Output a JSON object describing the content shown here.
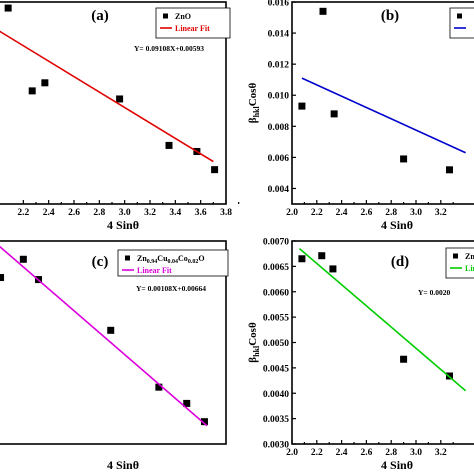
{
  "chart_data": [
    {
      "panel": "(a)",
      "type": "scatter",
      "xlabel": "4 Sinθ",
      "ylabel": "",
      "xlim": [
        2.0,
        3.8
      ],
      "ylim": [
        0.0,
        1.0
      ],
      "xticks": [
        "2.2",
        "2.4",
        "2.6",
        "2.8",
        "3.0",
        "3.2",
        "3.4",
        "3.6",
        "3.8"
      ],
      "yticks": [],
      "series": [
        {
          "name": "ZnO",
          "type": "scatter",
          "color": "#000000",
          "x": [
            2.08,
            2.27,
            2.37,
            2.96,
            3.35,
            3.57,
            3.71
          ],
          "y": [
            0.97,
            0.56,
            0.6,
            0.52,
            0.29,
            0.26,
            0.17
          ]
        },
        {
          "name": "Linear Fit",
          "type": "line",
          "color": "#e00000",
          "x": [
            2.0,
            3.7
          ],
          "y": [
            0.86,
            0.21
          ]
        }
      ],
      "equation": "Y= 0.09108X+0.00593",
      "legend_position": "top-right"
    },
    {
      "panel": "(b)",
      "type": "scatter",
      "xlabel": "4 Sinθ",
      "ylabel": "β_hkl Cosθ",
      "ylabel_main": "β",
      "ylabel_sub": "hkl",
      "ylabel_rest": "Cosθ",
      "xlim": [
        2.0,
        3.5
      ],
      "ylim": [
        0.003,
        0.016
      ],
      "xticks": [
        "2.0",
        "2.2",
        "2.4",
        "2.6",
        "2.8",
        "3.0",
        "3.2"
      ],
      "yticks": [
        "0.004",
        "0.006",
        "0.008",
        "0.010",
        "0.012",
        "0.014",
        "0.016"
      ],
      "series": [
        {
          "name": "",
          "type": "scatter",
          "color": "#000000",
          "x": [
            2.08,
            2.25,
            2.34,
            2.9,
            3.27
          ],
          "y": [
            0.0093,
            0.0154,
            0.0088,
            0.0059,
            0.0052
          ]
        },
        {
          "name": "",
          "type": "line",
          "color": "#0000cc",
          "x": [
            2.08,
            3.4
          ],
          "y": [
            0.0111,
            0.0063
          ]
        }
      ],
      "legend_position": "top-right"
    },
    {
      "panel": "(c)",
      "type": "scatter",
      "xlabel": "4 Sinθ",
      "ylabel": "",
      "xlim": [
        2.0,
        3.8
      ],
      "ylim": [
        0.0,
        1.0
      ],
      "xticks": [],
      "yticks": [],
      "series": [
        {
          "name": "Zn0.94Cu0.04Co0.02O",
          "type": "scatter",
          "color": "#000000",
          "x": [
            2.02,
            2.2,
            2.32,
            2.89,
            3.27,
            3.49,
            3.63
          ],
          "y": [
            0.82,
            0.91,
            0.81,
            0.56,
            0.28,
            0.2,
            0.11
          ]
        },
        {
          "name": "Linear Fit",
          "type": "line",
          "color": "#dd00dd",
          "x": [
            2.0,
            3.65
          ],
          "y": [
            0.98,
            0.09
          ]
        }
      ],
      "legend_name_parts": [
        "Zn",
        "0.94",
        "Cu",
        "0.04",
        "Co",
        "0.02",
        "O"
      ],
      "equation": "Y= 0.00108X+0.00664",
      "legend_position": "top-right"
    },
    {
      "panel": "(d)",
      "type": "scatter",
      "xlabel": "4 Sinθ",
      "ylabel": "β_hkl Cosθ",
      "ylabel_main": "β",
      "ylabel_sub": "hkl",
      "ylabel_rest": "Cosθ",
      "xlim": [
        2.0,
        3.5
      ],
      "ylim": [
        0.003,
        0.007
      ],
      "xticks": [
        "2.0",
        "2.2",
        "2.4",
        "2.6",
        "2.8",
        "3.0",
        "3.2"
      ],
      "yticks": [
        "0.0030",
        "0.0035",
        "0.0040",
        "0.0045",
        "0.0050",
        "0.0055",
        "0.0060",
        "0.0065",
        "0.0070"
      ],
      "series": [
        {
          "name": "Zn",
          "type": "scatter",
          "color": "#000000",
          "x": [
            2.08,
            2.24,
            2.33,
            2.9,
            3.27
          ],
          "y": [
            0.00665,
            0.00671,
            0.00645,
            0.00467,
            0.00434
          ]
        },
        {
          "name": "Linea",
          "type": "line",
          "color": "#00cc00",
          "x": [
            2.06,
            3.4
          ],
          "y": [
            0.00685,
            0.00405
          ]
        }
      ],
      "equation": "Y= 0.0020",
      "legend_position": "top-right"
    }
  ]
}
